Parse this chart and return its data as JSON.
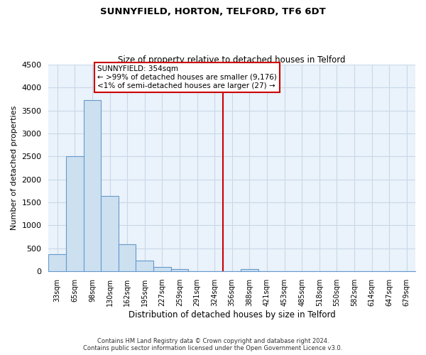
{
  "title": "SUNNYFIELD, HORTON, TELFORD, TF6 6DT",
  "subtitle": "Size of property relative to detached houses in Telford",
  "xlabel": "Distribution of detached houses by size in Telford",
  "ylabel": "Number of detached properties",
  "bin_labels": [
    "33sqm",
    "65sqm",
    "98sqm",
    "130sqm",
    "162sqm",
    "195sqm",
    "227sqm",
    "259sqm",
    "291sqm",
    "324sqm",
    "356sqm",
    "388sqm",
    "421sqm",
    "453sqm",
    "485sqm",
    "518sqm",
    "550sqm",
    "582sqm",
    "614sqm",
    "647sqm",
    "679sqm"
  ],
  "bar_heights": [
    380,
    2500,
    3720,
    1640,
    590,
    235,
    100,
    55,
    0,
    0,
    0,
    55,
    0,
    0,
    0,
    0,
    0,
    0,
    0,
    0,
    0
  ],
  "bar_color": "#cce0f0",
  "bar_edge_color": "#6699cc",
  "ylim": [
    0,
    4500
  ],
  "yticks": [
    0,
    500,
    1000,
    1500,
    2000,
    2500,
    3000,
    3500,
    4000,
    4500
  ],
  "vline_color": "#cc0000",
  "annotation_title": "SUNNYFIELD: 354sqm",
  "annotation_line1": "← >99% of detached houses are smaller (9,176)",
  "annotation_line2": "<1% of semi-detached houses are larger (27) →",
  "footer_line1": "Contains HM Land Registry data © Crown copyright and database right 2024.",
  "footer_line2": "Contains public sector information licensed under the Open Government Licence v3.0.",
  "background_color": "#ffffff",
  "grid_color": "#c8d8e8"
}
